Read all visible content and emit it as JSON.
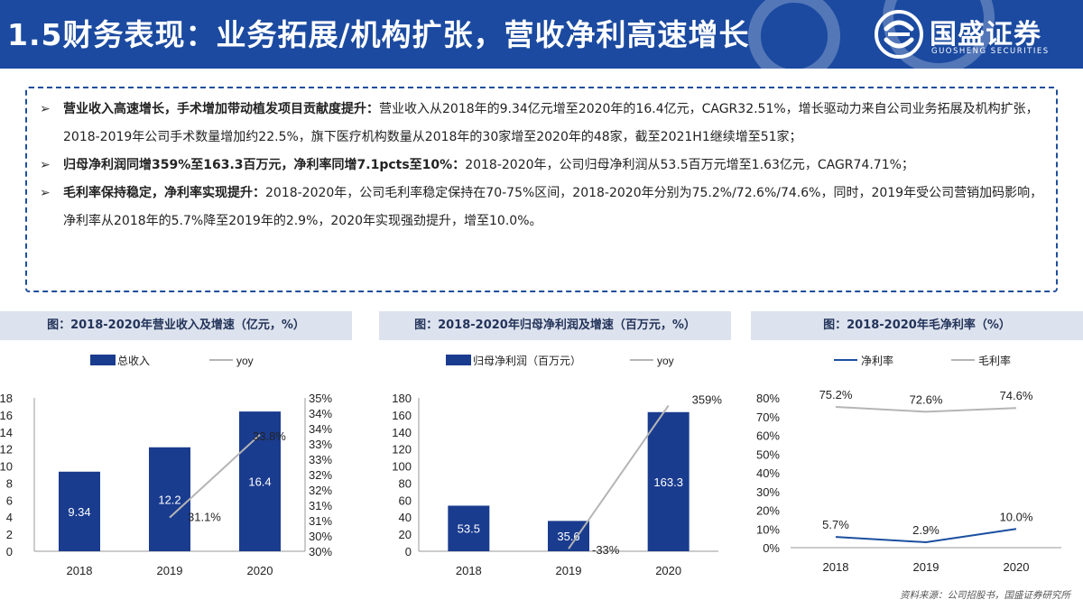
{
  "header": {
    "title": "1.5财务表现：业务拓展/机构扩张，营收净利高速增长",
    "logo_name": "国盛证券",
    "logo_sub": "GUOSHENG SECURITIES",
    "logo_icon": "guosheng-logo-icon"
  },
  "summary": {
    "bullet_icon": "➢",
    "items": [
      {
        "lead": "营业收入高速增长，手术增加带动植发项目贡献度提升：",
        "body": "营业收入从2018年的9.34亿元增至2020年的16.4亿元，CAGR32.51%，增长驱动力来自公司业务拓展及机构扩张，2018-2019年公司手术数量增加约22.5%，旗下医疗机构数量从2018年的30家增至2020年的48家，截至2021H1继续增至51家；"
      },
      {
        "lead": "归母净利润同增359%至163.3百万元，净利率同增7.1pcts至10%：",
        "body": "2018-2020年，公司归母净利润从53.5百万元增至1.63亿元，CAGR74.71%；"
      },
      {
        "lead": "毛利率保持稳定，净利率实现提升：",
        "body": "2018-2020年，公司毛利率稳定保持在70-75%区间，2018-2020年分别为75.2%/72.6%/74.6%，同时，2019年受公司营销加码影响，净利率从2018年的5.7%降至2019年的2.9%，2020年实现强劲提升，增至10.0%。"
      }
    ]
  },
  "colors": {
    "header_bg": "#1b4aa0",
    "bar": "#1a3c8f",
    "line_gray": "#b5b5b5",
    "line_blue": "#1a4fa0",
    "panel_title_bg": "#dde3ee"
  },
  "chart_data": [
    {
      "type": "bar",
      "title": "图：2018-2020年营业收入及增速（亿元，%）",
      "categories": [
        "2018",
        "2019",
        "2020"
      ],
      "series": [
        {
          "name": "总收入",
          "values": [
            9.34,
            12.2,
            16.4
          ],
          "labels": [
            "9.34",
            "12.2",
            "16.4"
          ]
        }
      ],
      "line_series": [
        {
          "name": "yoy",
          "values": [
            null,
            31.1,
            33.8
          ],
          "labels": [
            "",
            "31.1%",
            "33.8%"
          ]
        }
      ],
      "y_ticks": [
        "0",
        "2",
        "4",
        "6",
        "8",
        "10",
        "12",
        "14",
        "16",
        "18"
      ],
      "ylim": [
        0,
        18
      ],
      "y2_ticks": [
        "30%",
        "30%",
        "31%",
        "31%",
        "32%",
        "32%",
        "33%",
        "33%",
        "34%",
        "34%",
        "35%"
      ],
      "y2lim": [
        30,
        35
      ],
      "legend_position": "top"
    },
    {
      "type": "bar",
      "title": "图：2018-2020年归母净利润及增速（百万元，%）",
      "categories": [
        "2018",
        "2019",
        "2020"
      ],
      "series": [
        {
          "name": "归母净利润（百万元）",
          "values": [
            53.5,
            35.6,
            163.3
          ],
          "labels": [
            "53.5",
            "35.6",
            "163.3"
          ]
        }
      ],
      "line_series": [
        {
          "name": "yoy",
          "values": [
            null,
            -33,
            359
          ],
          "labels": [
            "",
            "-33%",
            "359%"
          ]
        }
      ],
      "y_ticks": [
        "0",
        "20",
        "40",
        "60",
        "80",
        "100",
        "120",
        "140",
        "160",
        "180"
      ],
      "ylim": [
        0,
        180
      ],
      "legend_position": "top"
    },
    {
      "type": "line",
      "title": "图：2018-2020年毛净利率（%）",
      "categories": [
        "2018",
        "2019",
        "2020"
      ],
      "series": [
        {
          "name": "净利率",
          "values": [
            5.7,
            2.9,
            10.0
          ],
          "labels": [
            "5.7%",
            "2.9%",
            "10.0%"
          ]
        },
        {
          "name": "毛利率",
          "values": [
            75.2,
            72.6,
            74.6
          ],
          "labels": [
            "75.2%",
            "72.6%",
            "74.6%"
          ]
        }
      ],
      "y_ticks": [
        "0%",
        "10%",
        "20%",
        "30%",
        "40%",
        "50%",
        "60%",
        "70%",
        "80%"
      ],
      "ylim": [
        0,
        80
      ],
      "legend_position": "top"
    }
  ],
  "source": "资料来源：公司招股书，国盛证券研究所"
}
